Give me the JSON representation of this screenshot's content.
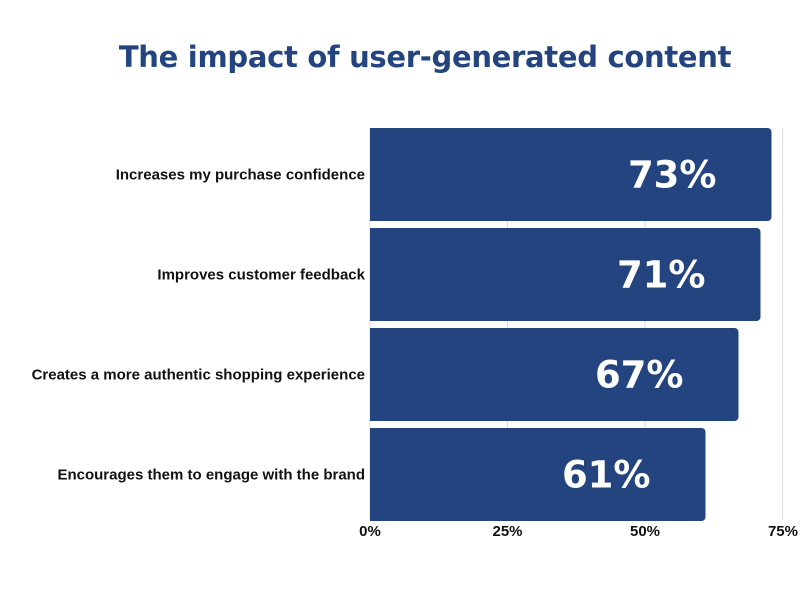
{
  "chart_data": {
    "type": "bar",
    "orientation": "horizontal",
    "title": "The impact of user-generated content",
    "categories": [
      "Increases my purchase confidence",
      "Improves customer feedback",
      "Creates a more authentic shopping experience",
      "Encourages them to engage with the brand"
    ],
    "values": [
      73,
      71,
      67,
      61
    ],
    "data_labels": [
      "73%",
      "71%",
      "67%",
      "61%"
    ],
    "xlim": [
      0,
      75
    ],
    "xticks": [
      "0%",
      "25%",
      "50%",
      "75%"
    ],
    "grid": true,
    "legend": "none",
    "bar_color": "#23447e",
    "label_color": "#ffffff"
  }
}
